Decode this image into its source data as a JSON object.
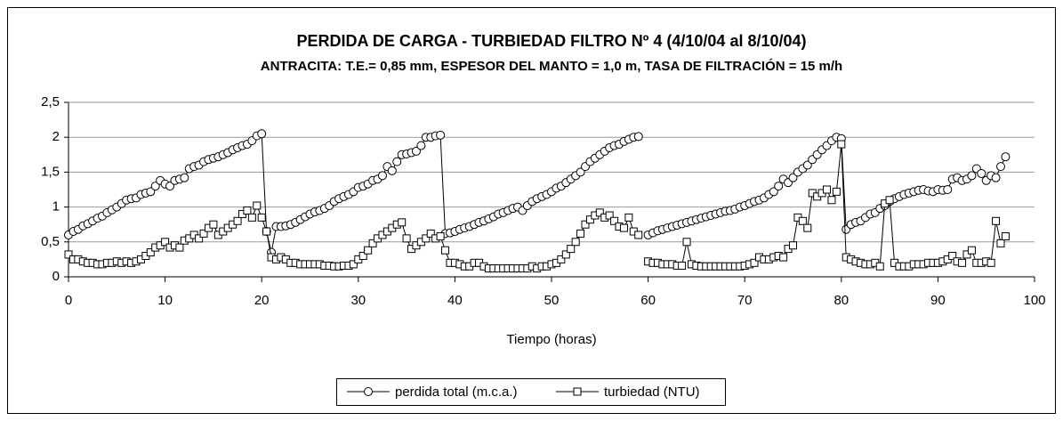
{
  "chart_data": {
    "type": "line",
    "title": "PERDIDA DE CARGA - TURBIEDAD FILTRO Nº 4 (4/10/04 al 8/10/04)",
    "subtitle": "ANTRACITA: T.E.= 0,85 mm, ESPESOR DEL MANTO = 1,0 m, TASA DE FILTRACIÓN = 15 m/h",
    "xlabel": "Tiempo (horas)",
    "xlim": [
      0,
      100
    ],
    "xticks": [
      0,
      10,
      20,
      30,
      40,
      50,
      60,
      70,
      80,
      90,
      100
    ],
    "ylim": [
      0,
      2.5
    ],
    "yticks": [
      0,
      {
        "value": 0.5,
        "label": "0,5"
      },
      1,
      {
        "value": 1.5,
        "label": "1,5"
      },
      2,
      {
        "value": 2.5,
        "label": "2,5"
      }
    ],
    "grid": true,
    "legend": "bottom",
    "x": [
      0,
      0.5,
      1,
      1.5,
      2,
      2.5,
      3,
      3.5,
      4,
      4.5,
      5,
      5.5,
      6,
      6.5,
      7,
      7.5,
      8,
      8.5,
      9,
      9.5,
      10,
      10.5,
      11,
      11.5,
      12,
      12.5,
      13,
      13.5,
      14,
      14.5,
      15,
      15.5,
      16,
      16.5,
      17,
      17.5,
      18,
      18.5,
      19,
      19.5,
      20,
      20.5,
      21,
      21.5,
      22,
      22.5,
      23,
      23.5,
      24,
      24.5,
      25,
      25.5,
      26,
      26.5,
      27,
      27.5,
      28,
      28.5,
      29,
      29.5,
      30,
      30.5,
      31,
      31.5,
      32,
      32.5,
      33,
      33.5,
      34,
      34.5,
      35,
      35.5,
      36,
      36.5,
      37,
      37.5,
      38,
      38.5,
      39,
      39.5,
      40,
      40.5,
      41,
      41.5,
      42,
      42.5,
      43,
      43.5,
      44,
      44.5,
      45,
      45.5,
      46,
      46.5,
      47,
      47.5,
      48,
      48.5,
      49,
      49.5,
      50,
      50.5,
      51,
      51.5,
      52,
      52.5,
      53,
      53.5,
      54,
      54.5,
      55,
      55.5,
      56,
      56.5,
      57,
      57.5,
      58,
      58.5,
      59,
      59.5,
      60,
      60.5,
      61,
      61.5,
      62,
      62.5,
      63,
      63.5,
      64,
      64.5,
      65,
      65.5,
      66,
      66.5,
      67,
      67.5,
      68,
      68.5,
      69,
      69.5,
      70,
      70.5,
      71,
      71.5,
      72,
      72.5,
      73,
      73.5,
      74,
      74.5,
      75,
      75.5,
      76,
      76.5,
      77,
      77.5,
      78,
      78.5,
      79,
      79.5,
      80,
      80.5,
      81,
      81.5,
      82,
      82.5,
      83,
      83.5,
      84,
      84.5,
      85,
      85.5,
      86,
      86.5,
      87,
      87.5,
      88,
      88.5,
      89,
      89.5,
      90,
      90.5,
      91,
      91.5,
      92,
      92.5,
      93,
      93.5,
      94,
      94.5,
      95,
      95.5,
      96,
      96.5,
      97
    ],
    "series": [
      {
        "name": "perdida total (m.c.a.)",
        "color": "#000000",
        "marker": "circle",
        "values": [
          0.6,
          0.65,
          0.68,
          0.73,
          0.76,
          0.8,
          0.84,
          0.87,
          0.92,
          0.96,
          1.0,
          1.05,
          1.1,
          1.12,
          1.13,
          1.18,
          1.2,
          1.22,
          1.3,
          1.38,
          1.33,
          1.3,
          1.38,
          1.4,
          1.42,
          1.55,
          1.58,
          1.6,
          1.65,
          1.68,
          1.7,
          1.72,
          1.75,
          1.78,
          1.82,
          1.85,
          1.88,
          1.9,
          1.95,
          2.02,
          2.05,
          0.65,
          0.35,
          0.72,
          0.72,
          0.73,
          0.75,
          0.78,
          0.82,
          0.86,
          0.9,
          0.93,
          0.95,
          0.98,
          1.02,
          1.08,
          1.12,
          1.15,
          1.18,
          1.22,
          1.28,
          1.3,
          1.33,
          1.38,
          1.4,
          1.45,
          1.58,
          1.52,
          1.65,
          1.75,
          1.76,
          1.78,
          1.8,
          1.88,
          2.0,
          2.0,
          2.02,
          2.03,
          0.62,
          0.63,
          0.65,
          0.68,
          0.7,
          0.72,
          0.75,
          0.78,
          0.8,
          0.83,
          0.86,
          0.9,
          0.92,
          0.95,
          0.98,
          1.0,
          0.95,
          1.02,
          1.08,
          1.12,
          1.15,
          1.18,
          1.22,
          1.27,
          1.3,
          1.35,
          1.4,
          1.45,
          1.5,
          1.58,
          1.65,
          1.7,
          1.75,
          1.8,
          1.85,
          1.88,
          1.9,
          1.94,
          1.97,
          2.0,
          2.01,
          null,
          0.6,
          0.63,
          0.66,
          0.68,
          0.7,
          0.72,
          0.74,
          0.76,
          0.78,
          0.8,
          0.82,
          0.84,
          0.86,
          0.88,
          0.9,
          0.92,
          0.94,
          0.95,
          0.97,
          1.0,
          1.02,
          1.05,
          1.08,
          1.1,
          1.13,
          1.18,
          1.22,
          1.3,
          1.4,
          1.35,
          1.42,
          1.5,
          1.55,
          1.6,
          1.68,
          1.75,
          1.82,
          1.88,
          1.95,
          2.0,
          1.98,
          0.68,
          0.75,
          0.78,
          0.8,
          0.85,
          0.9,
          0.92,
          0.98,
          1.02,
          1.08,
          1.12,
          1.15,
          1.18,
          1.2,
          1.22,
          1.24,
          1.25,
          1.23,
          1.22,
          1.25,
          1.24,
          1.25,
          1.4,
          1.42,
          1.38,
          1.4,
          1.45,
          1.55,
          1.48,
          1.38,
          1.45,
          1.42,
          1.58,
          1.72
        ]
      },
      {
        "name": "turbiedad (NTU)",
        "color": "#000000",
        "marker": "square",
        "values": [
          0.32,
          0.25,
          0.25,
          0.22,
          0.2,
          0.2,
          0.18,
          0.18,
          0.2,
          0.2,
          0.22,
          0.2,
          0.22,
          0.2,
          0.22,
          0.25,
          0.3,
          0.35,
          0.42,
          0.45,
          0.5,
          0.42,
          0.45,
          0.42,
          0.52,
          0.55,
          0.6,
          0.55,
          0.62,
          0.7,
          0.75,
          0.6,
          0.65,
          0.7,
          0.75,
          0.8,
          0.9,
          0.95,
          0.85,
          1.02,
          0.85,
          0.65,
          0.28,
          0.25,
          0.28,
          0.25,
          0.2,
          0.2,
          0.18,
          0.18,
          0.18,
          0.18,
          0.18,
          0.16,
          0.16,
          0.15,
          0.15,
          0.16,
          0.16,
          0.18,
          0.25,
          0.3,
          0.38,
          0.48,
          0.55,
          0.6,
          0.65,
          0.7,
          0.75,
          0.78,
          0.55,
          0.4,
          0.45,
          0.5,
          0.55,
          0.62,
          0.55,
          0.58,
          0.38,
          0.2,
          0.2,
          0.18,
          0.15,
          0.15,
          0.2,
          0.2,
          0.15,
          0.12,
          0.12,
          0.12,
          0.12,
          0.12,
          0.12,
          0.12,
          0.12,
          0.12,
          0.15,
          0.12,
          0.15,
          0.15,
          0.18,
          0.2,
          0.25,
          0.32,
          0.4,
          0.5,
          0.62,
          0.75,
          0.82,
          0.88,
          0.92,
          0.85,
          0.88,
          0.8,
          0.72,
          0.7,
          0.85,
          0.65,
          0.6,
          null,
          0.22,
          0.2,
          0.2,
          0.18,
          0.18,
          0.18,
          0.16,
          0.16,
          0.5,
          0.18,
          0.16,
          0.15,
          0.15,
          0.15,
          0.15,
          0.15,
          0.15,
          0.15,
          0.15,
          0.15,
          0.16,
          0.18,
          0.2,
          0.28,
          0.25,
          0.25,
          0.28,
          0.3,
          0.28,
          0.4,
          0.45,
          0.85,
          0.8,
          0.7,
          1.2,
          1.15,
          1.2,
          1.25,
          1.1,
          1.22,
          1.9,
          0.28,
          0.25,
          0.22,
          0.2,
          0.18,
          0.18,
          0.2,
          0.15,
          1.05,
          1.1,
          0.2,
          0.15,
          0.15,
          0.15,
          0.18,
          0.18,
          0.18,
          0.2,
          0.2,
          0.2,
          0.22,
          0.25,
          0.3,
          0.22,
          0.2,
          0.32,
          0.38,
          0.2,
          0.2,
          0.22,
          0.2,
          0.8,
          0.48,
          0.58
        ]
      }
    ]
  }
}
